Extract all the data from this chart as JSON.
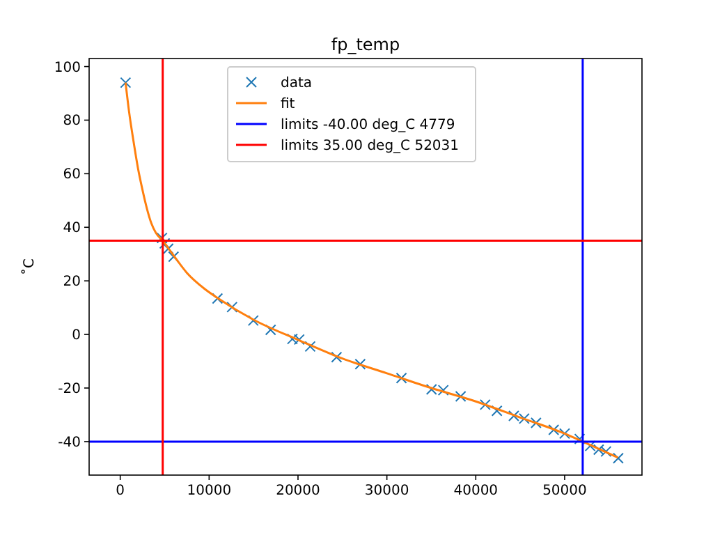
{
  "chart_data": {
    "type": "scatter",
    "title": "fp_temp",
    "ylabel": "˚C",
    "xlim": [
      -3500,
      58700
    ],
    "ylim": [
      -52.5,
      103
    ],
    "xticks": [
      0,
      10000,
      20000,
      30000,
      40000,
      50000
    ],
    "yticks": [
      -40,
      -20,
      0,
      20,
      40,
      60,
      80,
      100
    ],
    "legend": "top",
    "grid": false,
    "series": [
      {
        "name": "data",
        "marker": "cross",
        "color": "#1f77b4",
        "x": [
          600,
          4700,
          5000,
          5400,
          6000,
          10940,
          12580,
          14970,
          16920,
          19370,
          20140,
          21370,
          24340,
          27000,
          31640,
          35020,
          36350,
          38300,
          41060,
          42380,
          44280,
          45450,
          46780,
          48770,
          50000,
          51690,
          52870,
          53830,
          54650,
          56030
        ],
        "values": [
          94,
          36,
          34,
          32,
          29,
          13.4,
          10.2,
          5.2,
          1.7,
          -1.7,
          -1.9,
          -4.5,
          -8.5,
          -11.1,
          -16.3,
          -20.5,
          -20.8,
          -23.1,
          -26.2,
          -28.5,
          -30.4,
          -31.4,
          -33,
          -35.6,
          -37,
          -39,
          -41.6,
          -43,
          -43.7,
          -46.2
        ]
      },
      {
        "name": "fit",
        "type": "line",
        "marker": "none",
        "line_style": "solid",
        "color": "#ff7f0e",
        "x": [
          600,
          1000,
          1500,
          2000,
          2500,
          3000,
          3500,
          4000,
          4779,
          6000,
          7500,
          9500,
          11000,
          15000,
          20000,
          25000,
          30000,
          35000,
          40000,
          45000,
          50000,
          52031,
          56000
        ],
        "values": [
          94,
          83,
          72,
          62,
          54,
          47,
          41.5,
          38,
          35,
          29.5,
          23,
          17,
          13.5,
          5.5,
          -2,
          -9,
          -14.5,
          -20,
          -25,
          -31,
          -37,
          -40,
          -46
        ]
      }
    ],
    "ref_lines": [
      {
        "axis": "y",
        "value": -40,
        "label": "limits -40.00 deg_C 4779",
        "color": "#0000ff"
      },
      {
        "axis": "x",
        "value": 52031,
        "color": "#0000ff"
      },
      {
        "axis": "y",
        "value": 35,
        "label": "limits 35.00 deg_C 52031",
        "color": "#ff0000"
      },
      {
        "axis": "x",
        "value": 4779,
        "color": "#ff0000"
      }
    ]
  }
}
